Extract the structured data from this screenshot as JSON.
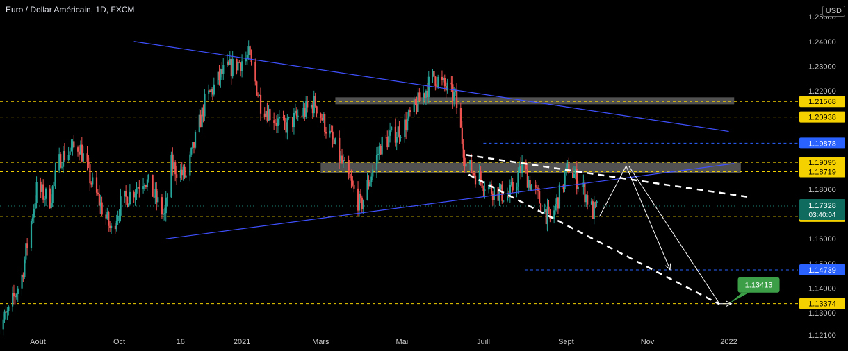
{
  "header": {
    "title": "Euro / Dollar Américain, 1D, FXCM",
    "currency": "USD"
  },
  "colors": {
    "bg": "#000000",
    "up": "#26a69a",
    "down": "#ef5350",
    "tick": "#c8c8c8",
    "trend_blue": "#3f51ff",
    "level_yellow": "#f0d000",
    "level_blue": "#2962ff",
    "zone": "#5a5a5a",
    "label_blue": "#2962ff",
    "label_teal": "#0e6b5e",
    "label_yellow": "#f5d100",
    "label_green": "#3c9f48",
    "dashed_white": "#ffffff"
  },
  "chart_data": {
    "type": "candlestick",
    "x_axis": {
      "start": "2020-07-01",
      "end": "2022-01-20",
      "ticks": [
        {
          "label": "Août",
          "date": "2020-08-01"
        },
        {
          "label": "Oct",
          "date": "2020-10-01"
        },
        {
          "label": "16",
          "date": "2020-11-16"
        },
        {
          "label": "2021",
          "date": "2021-01-01"
        },
        {
          "label": "Mars",
          "date": "2021-03-01"
        },
        {
          "label": "Mai",
          "date": "2021-05-01"
        },
        {
          "label": "Juill",
          "date": "2021-07-01"
        },
        {
          "label": "Sept",
          "date": "2021-09-01"
        },
        {
          "label": "Nov",
          "date": "2021-11-01"
        },
        {
          "label": "2022",
          "date": "2022-01-01"
        }
      ]
    },
    "y_axis": {
      "min": 1.119,
      "max": 1.254,
      "ticks": [
        "1.25000",
        "1.24000",
        "1.23000",
        "1.22000",
        "1.18000",
        "1.16000",
        "1.15000",
        "1.14000",
        "1.13000",
        "1.12100"
      ]
    },
    "price_path": [
      [
        "2020-07-01",
        1.123
      ],
      [
        "2020-07-10",
        1.13
      ],
      [
        "2020-07-20",
        1.145
      ],
      [
        "2020-07-31",
        1.18
      ],
      [
        "2020-08-10",
        1.176
      ],
      [
        "2020-08-18",
        1.193
      ],
      [
        "2020-09-01",
        1.198
      ],
      [
        "2020-09-10",
        1.183
      ],
      [
        "2020-09-25",
        1.163
      ],
      [
        "2020-10-01",
        1.173
      ],
      [
        "2020-10-20",
        1.185
      ],
      [
        "2020-11-04",
        1.169
      ],
      [
        "2020-11-09",
        1.19
      ],
      [
        "2020-11-20",
        1.185
      ],
      [
        "2020-12-04",
        1.215
      ],
      [
        "2020-12-17",
        1.227
      ],
      [
        "2021-01-06",
        1.234
      ],
      [
        "2021-01-15",
        1.215
      ],
      [
        "2021-02-01",
        1.205
      ],
      [
        "2021-02-25",
        1.215
      ],
      [
        "2021-03-15",
        1.193
      ],
      [
        "2021-03-31",
        1.173
      ],
      [
        "2021-04-15",
        1.198
      ],
      [
        "2021-05-03",
        1.206
      ],
      [
        "2021-05-25",
        1.226
      ],
      [
        "2021-06-10",
        1.217
      ],
      [
        "2021-06-18",
        1.19
      ],
      [
        "2021-07-07",
        1.18
      ],
      [
        "2021-07-20",
        1.177
      ],
      [
        "2021-07-30",
        1.189
      ],
      [
        "2021-08-20",
        1.167
      ],
      [
        "2021-09-03",
        1.189
      ],
      [
        "2021-09-14",
        1.18
      ],
      [
        "2021-09-21",
        1.171
      ],
      [
        "2021-09-24",
        1.172
      ]
    ],
    "horizontal_levels": [
      {
        "price": 1.21568,
        "label": "1.21568",
        "style": "dashed",
        "color": "yellow"
      },
      {
        "price": 1.20938,
        "label": "1.20938",
        "style": "dashed",
        "color": "yellow"
      },
      {
        "price": 1.19878,
        "label": "1.19878",
        "style": "dashed",
        "color": "blue",
        "from": "2021-07-01"
      },
      {
        "price": 1.19095,
        "label": "1.19095",
        "style": "dashed",
        "color": "yellow"
      },
      {
        "price": 1.18719,
        "label": "1.18719",
        "style": "dashed",
        "color": "yellow"
      },
      {
        "price": 1.1691,
        "label": "1.16910",
        "style": "dashed",
        "color": "yellow"
      },
      {
        "price": 1.14739,
        "label": "1.14739",
        "style": "dashed",
        "color": "blue",
        "from": "2021-08-01"
      },
      {
        "price": 1.13374,
        "label": "1.13374",
        "style": "dashed",
        "color": "yellow"
      }
    ],
    "current_price": {
      "price": 1.17328,
      "label": "1.17328",
      "countdown": "03:40:04"
    },
    "zones": [
      {
        "from": "2021-03-12",
        "to": "2022-01-05",
        "top": 1.2165,
        "bottom": 1.2148
      },
      {
        "from": "2021-03-01",
        "to": "2022-01-10",
        "top": 1.19,
        "bottom": 1.1868
      }
    ],
    "trendlines": [
      {
        "from": [
          "2020-10-12",
          1.24
        ],
        "to": [
          "2022-01-01",
          1.2035
        ],
        "style": "solid",
        "color": "blue"
      },
      {
        "from": [
          "2020-11-05",
          1.16
        ],
        "to": [
          "2022-01-05",
          1.1905
        ],
        "style": "solid",
        "color": "blue"
      },
      {
        "from": [
          "2021-06-18",
          1.194
        ],
        "to": [
          "2022-01-15",
          1.177
        ],
        "style": "dashed",
        "color": "white"
      },
      {
        "from": [
          "2021-06-20",
          1.186
        ],
        "to": [
          "2021-12-25",
          1.1335
        ],
        "style": "dashed",
        "color": "white"
      }
    ],
    "projections": [
      {
        "points": [
          [
            "2021-09-26",
            1.169
          ],
          [
            "2021-10-16",
            1.1895
          ],
          [
            "2021-11-18",
            1.1475
          ]
        ],
        "end_arrow": true
      },
      {
        "points": [
          [
            "2021-10-18",
            1.1895
          ],
          [
            "2021-12-25",
            1.1337
          ],
          [
            "2022-01-03",
            1.1337
          ]
        ],
        "end_arrow": true
      }
    ],
    "callout": {
      "label": "1.13413",
      "anchor": [
        "2022-01-01",
        1.1337
      ]
    }
  }
}
